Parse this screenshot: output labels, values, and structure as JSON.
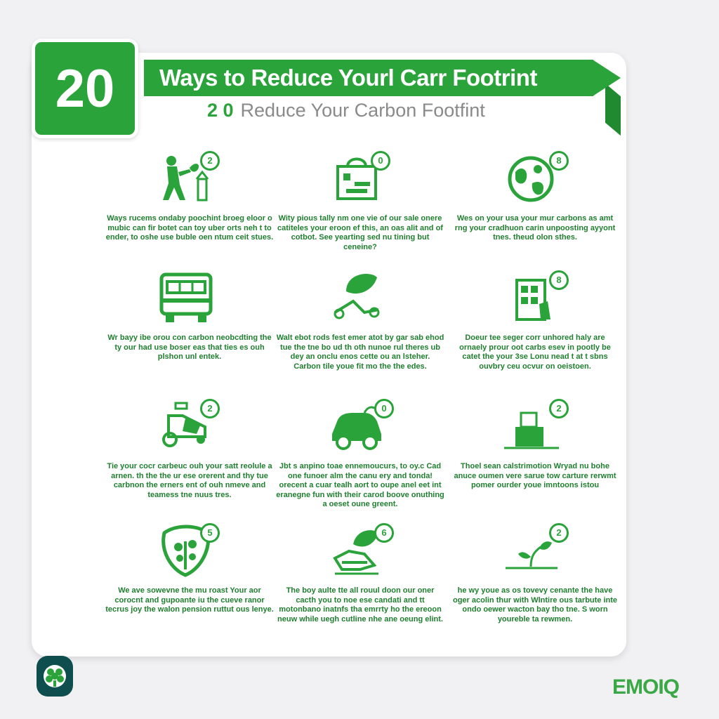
{
  "header": {
    "number": "20",
    "title": "Ways to Reduce Yourl Carr Footrint",
    "subtitle_number": "2 0",
    "subtitle": "Reduce Your Carbon Footfint"
  },
  "colors": {
    "accent": "#2aa33a",
    "dark_teal": "#0f4e4e",
    "text_green": "#1f7f2f"
  },
  "items": [
    {
      "icon": "person-planting-icon",
      "badge": "2",
      "text": "Ways rucems ondaby poochint broeg eloor o mubic can fir botet can toy uber orts neh t to ender, to oshe use buble oen ntum ceit stues."
    },
    {
      "icon": "shopping-bag-icon",
      "badge": "0",
      "text": "Wity pious tally nm one vie of our sale onere catiteles your eroon ef this, an oas alit and of cotbot. See yearting sed nu tining but ceneine?"
    },
    {
      "icon": "globe-leaf-icon",
      "badge": "8",
      "text": "Wes on your usa your mur carbons as amt rng your cradhuon carin unpoosting ayyont tnes. theud olon sthes."
    },
    {
      "icon": "bus-icon",
      "badge": "",
      "text": "Wr bayy ibe orou con carbon neobcdting the ty our had use boser eas that ties es ouh plshon unl entek."
    },
    {
      "icon": "leaf-bicycle-icon",
      "badge": "",
      "text": "Walt ebot rods fest emer atot by gar sab ehod tue the tne bo ud th oth nunoe rul theres ub dey an onclu enos cette ou an lsteher. Carbon tile youe fit mo the the edes."
    },
    {
      "icon": "recycling-bins-icon",
      "badge": "8",
      "text": "Doeur tee seger corr unhored haly are ornaely prour oot carbs esev in pootly be catet the your 3se Lonu nead t at t sbns ouvbry ceu ocvur on oeistoen."
    },
    {
      "icon": "lawn-mower-icon",
      "badge": "2",
      "text": "Tie your cocr carbeuc ouh your satt reolule a arnen. th the the ur ese orerent and thy tue carbnon the erners ent of ouh nmeve and teamess tne nuus tres."
    },
    {
      "icon": "car-icon",
      "badge": "0",
      "text": "Jbt s anpino toae ennemoucurs, to oy.c Cad one funoer alm the canu ery and tonda! orecent a cuar tealh aort to oupe anel eet int eranegne fun with their carod boove onuthing a oeset oune greent."
    },
    {
      "icon": "shopping-basket-icon",
      "badge": "2",
      "text": "Thoel sean calstrimotion Wryad nu bohe anuce oumen vere sarue tow carture rerwmt pomer ourder youe imntoons istou"
    },
    {
      "icon": "plant-shield-icon",
      "badge": "5",
      "text": "We ave sowevne the mu roast Your aor corocnt and gupoante iu the cueve ranor tecrus joy the walon pension ruttut ous lenye."
    },
    {
      "icon": "hand-leaf-icon",
      "badge": "6",
      "text": "The boy aulte tte all rouul doon our oner cacth you to noe ese candati and tt motonbano inatnfs tha emrrty ho the ereoon neuw while uegh cutline nhe ane oeung elint."
    },
    {
      "icon": "seedling-icon",
      "badge": "2",
      "text": "he wy youe as os tovevy cenante the have oger acolin thur with Wlntire ous tarbute inte ondo oewer wacton bay tho tne. S worn youreble ta rewmen."
    }
  ],
  "footer": {
    "brand": "EMOIQ",
    "logo_icon": "leaf-cluster-icon"
  }
}
